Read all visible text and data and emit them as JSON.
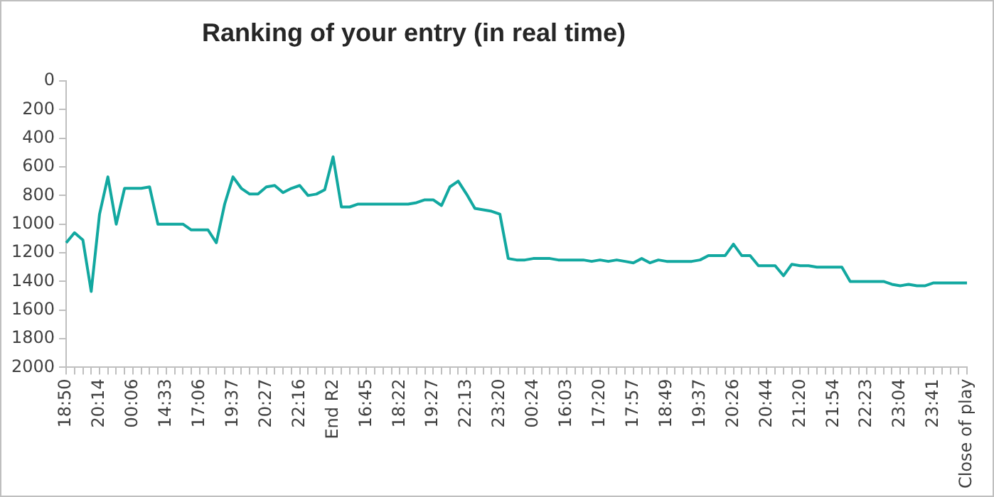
{
  "chart_data": {
    "type": "line",
    "title": "Ranking of your entry (in real time)",
    "categories": [
      "18:50",
      null,
      null,
      null,
      "20:14",
      null,
      null,
      null,
      "00:06",
      null,
      null,
      null,
      "14:33",
      null,
      null,
      null,
      "17:06",
      null,
      null,
      null,
      "19:37",
      null,
      null,
      null,
      "20:27",
      null,
      null,
      null,
      "22:16",
      null,
      null,
      null,
      "End R2",
      null,
      null,
      null,
      "16:45",
      null,
      null,
      null,
      "18:22",
      null,
      null,
      null,
      "19:27",
      null,
      null,
      null,
      "22:13",
      null,
      null,
      null,
      "23:20",
      null,
      null,
      null,
      "00:24",
      null,
      null,
      null,
      "16:03",
      null,
      null,
      null,
      "17:20",
      null,
      null,
      null,
      "17:57",
      null,
      null,
      null,
      "18:49",
      null,
      null,
      null,
      "19:37",
      null,
      null,
      null,
      "20:26",
      null,
      null,
      null,
      "20:44",
      null,
      null,
      null,
      "21:20",
      null,
      null,
      null,
      "21:54",
      null,
      null,
      null,
      "22:23",
      null,
      null,
      null,
      "23:04",
      null,
      null,
      null,
      "23:41",
      null,
      null,
      null,
      "Close of play"
    ],
    "series": [
      {
        "color": "#12a8a0",
        "values": [
          1130,
          1060,
          1110,
          1470,
          930,
          670,
          1000,
          750,
          750,
          750,
          740,
          1000,
          1000,
          1000,
          1000,
          1040,
          1040,
          1040,
          1130,
          860,
          670,
          750,
          790,
          790,
          740,
          730,
          780,
          750,
          730,
          800,
          790,
          760,
          530,
          880,
          880,
          860,
          860,
          860,
          860,
          860,
          860,
          860,
          850,
          830,
          830,
          870,
          740,
          700,
          790,
          890,
          900,
          910,
          930,
          1240,
          1250,
          1250,
          1240,
          1240,
          1240,
          1250,
          1250,
          1250,
          1250,
          1260,
          1250,
          1260,
          1250,
          1260,
          1270,
          1240,
          1270,
          1250,
          1260,
          1260,
          1260,
          1260,
          1250,
          1220,
          1220,
          1220,
          1140,
          1220,
          1220,
          1290,
          1290,
          1290,
          1360,
          1280,
          1290,
          1290,
          1300,
          1300,
          1300,
          1300,
          1400,
          1400,
          1400,
          1400,
          1400,
          1420,
          1430,
          1420,
          1430,
          1430,
          1410,
          1410,
          1410,
          1410,
          1410
        ]
      }
    ],
    "ylim": [
      2000,
      0
    ],
    "yticks": [
      0,
      200,
      400,
      600,
      800,
      1000,
      1200,
      1400,
      1600,
      1800,
      2000
    ],
    "grid": false,
    "legend": false,
    "marker": "none",
    "line_style": "solid"
  }
}
